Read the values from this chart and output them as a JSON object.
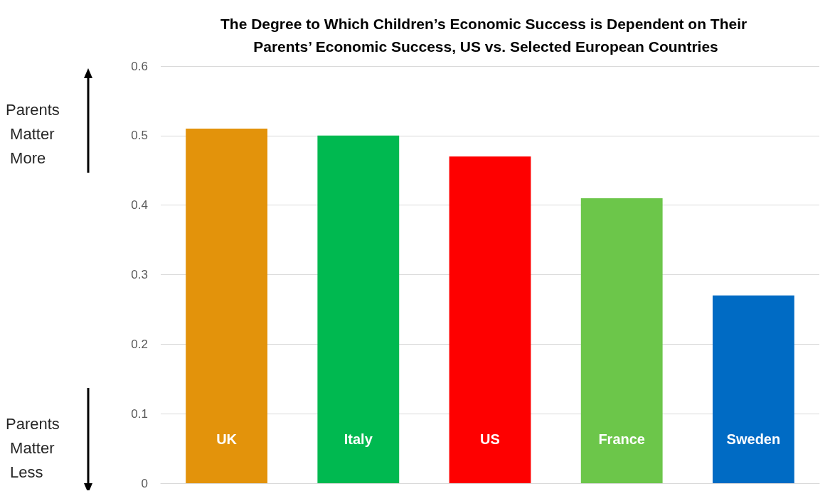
{
  "chart_data": {
    "type": "bar",
    "title": "The Degree to Which Children’s Economic Success is Dependent on Their Parents’ Economic Success, US vs. Selected European Countries",
    "categories": [
      "UK",
      "Italy",
      "US",
      "France",
      "Sweden"
    ],
    "values": [
      0.51,
      0.5,
      0.47,
      0.41,
      0.27
    ],
    "colors": [
      "#e3930b",
      "#00b950",
      "#fe0000",
      "#6cc64a",
      "#006bc4"
    ],
    "ylim": [
      0,
      0.6
    ],
    "yticks": [
      0,
      0.1,
      0.2,
      0.3,
      0.4,
      0.5,
      0.6
    ],
    "grid": "y",
    "annotations": [
      "Parents Matter More",
      "Parents Matter Less"
    ]
  }
}
